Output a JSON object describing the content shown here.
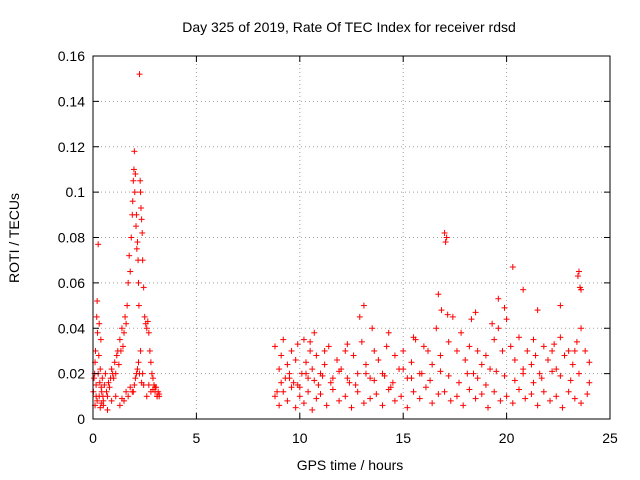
{
  "chart_data": {
    "type": "scatter",
    "title": "Day 325 of 2019, Rate Of TEC Index for receiver rdsd",
    "xlabel": "GPS time / hours",
    "ylabel": "ROTI / TECUs",
    "xlim": [
      0,
      25
    ],
    "ylim": [
      0,
      0.16
    ],
    "xticks": [
      0,
      5,
      10,
      15,
      20,
      25
    ],
    "yticks": [
      0,
      0.02,
      0.04,
      0.06,
      0.08,
      0.1,
      0.12,
      0.14,
      0.16
    ],
    "xtick_labels": [
      "0",
      "5",
      "10",
      "15",
      "20",
      "25"
    ],
    "ytick_labels": [
      "0",
      "0.02",
      "0.04",
      "0.06",
      "0.08",
      "0.1",
      "0.12",
      "0.14",
      "0.16"
    ],
    "grid": true,
    "marker": "plus",
    "series_color": "#ff0000",
    "series": [
      {
        "x": [
          0.02,
          0.05,
          0.08,
          0.1,
          0.12,
          0.15,
          0.18,
          0.2,
          0.22,
          0.25,
          0.28,
          0.3,
          0.33,
          0.35,
          0.38,
          0.4,
          0.42,
          0.45,
          0.48,
          0.5,
          0.55,
          0.6,
          0.65,
          0.7,
          0.75,
          0.8,
          0.85,
          0.9,
          0.95,
          1.0,
          1.05,
          1.1,
          1.15,
          1.2,
          1.25,
          1.3,
          1.35,
          1.4,
          1.45,
          1.5,
          1.55,
          1.6,
          1.65,
          1.7,
          1.75,
          1.8,
          1.85,
          1.9,
          1.92,
          1.95,
          1.98,
          2.0,
          2.02,
          2.05,
          2.08,
          2.1,
          2.12,
          2.15,
          2.18,
          2.2,
          2.22,
          2.25,
          2.28,
          2.3,
          2.32,
          2.35,
          2.38,
          2.4,
          2.45,
          2.5,
          2.55,
          2.6,
          2.65,
          2.7,
          2.75,
          2.8,
          2.85,
          2.9,
          2.95,
          3.0,
          3.05,
          3.1,
          3.15,
          3.2,
          0.1,
          0.2,
          0.3,
          0.35,
          0.4,
          0.25,
          0.15,
          1.3,
          1.5,
          1.7,
          1.9,
          2.0,
          2.1,
          2.2,
          2.3,
          2.35,
          2.25,
          2.15,
          2.05,
          1.95,
          2.45,
          2.6,
          2.8,
          3.0,
          3.1,
          0.5,
          0.7,
          0.9,
          1.1,
          1.4,
          1.6,
          1.8,
          2.4,
          2.7,
          2.9,
          3.2
        ],
        "y": [
          0.012,
          0.018,
          0.02,
          0.025,
          0.03,
          0.015,
          0.045,
          0.052,
          0.038,
          0.02,
          0.028,
          0.042,
          0.016,
          0.022,
          0.035,
          0.014,
          0.012,
          0.018,
          0.01,
          0.008,
          0.015,
          0.02,
          0.012,
          0.01,
          0.016,
          0.014,
          0.018,
          0.022,
          0.02,
          0.018,
          0.025,
          0.02,
          0.028,
          0.03,
          0.024,
          0.035,
          0.03,
          0.04,
          0.032,
          0.038,
          0.045,
          0.042,
          0.05,
          0.06,
          0.072,
          0.065,
          0.08,
          0.09,
          0.096,
          0.105,
          0.11,
          0.118,
          0.1,
          0.108,
          0.085,
          0.09,
          0.075,
          0.078,
          0.07,
          0.06,
          0.05,
          0.152,
          0.105,
          0.1,
          0.093,
          0.088,
          0.082,
          0.07,
          0.058,
          0.045,
          0.042,
          0.04,
          0.043,
          0.038,
          0.03,
          0.025,
          0.02,
          0.018,
          0.015,
          0.012,
          0.014,
          0.01,
          0.012,
          0.01,
          0.006,
          0.008,
          0.01,
          0.005,
          0.007,
          0.077,
          0.01,
          0.006,
          0.008,
          0.01,
          0.012,
          0.015,
          0.02,
          0.025,
          0.03,
          0.016,
          0.02,
          0.022,
          0.018,
          0.012,
          0.015,
          0.01,
          0.012,
          0.014,
          0.01,
          0.006,
          0.004,
          0.008,
          0.01,
          0.009,
          0.012,
          0.014,
          0.02,
          0.015,
          0.013,
          0.011
        ]
      },
      {
        "x": [
          8.8,
          8.9,
          9.0,
          9.1,
          9.2,
          9.3,
          9.4,
          9.5,
          9.6,
          9.7,
          9.8,
          9.9,
          10.0,
          10.1,
          10.2,
          10.3,
          10.4,
          10.5,
          10.6,
          10.7,
          10.8,
          10.9,
          11.0,
          11.2,
          11.4,
          11.6,
          11.8,
          12.0,
          12.2,
          12.4,
          12.6,
          12.8,
          13.0,
          13.2,
          13.4,
          13.6,
          13.8,
          14.0,
          14.2,
          14.4,
          14.6,
          14.8,
          15.0,
          15.2,
          15.4,
          15.6,
          15.8,
          16.0,
          16.2,
          16.4,
          16.6,
          16.8,
          17.0,
          17.05,
          17.1,
          17.2,
          17.4,
          17.6,
          17.8,
          18.0,
          18.2,
          18.4,
          18.6,
          18.8,
          19.0,
          19.2,
          19.4,
          19.6,
          19.8,
          20.0,
          20.2,
          20.4,
          20.6,
          20.8,
          21.0,
          21.2,
          21.4,
          21.6,
          21.8,
          22.0,
          22.2,
          22.4,
          22.6,
          22.8,
          23.0,
          23.2,
          23.4,
          23.5,
          23.6,
          23.8,
          24.0,
          13.1,
          12.9,
          16.7,
          19.6,
          19.9,
          20.3,
          20.8,
          21.5,
          23.45,
          23.55,
          23.6,
          16.85,
          17.15,
          18.3,
          18.5,
          22.6,
          13.5,
          14.3,
          10.5,
          11.2,
          12.3,
          15.5,
          19.3,
          21.3,
          22.3,
          23.3
        ],
        "y": [
          0.032,
          0.012,
          0.022,
          0.028,
          0.035,
          0.018,
          0.024,
          0.02,
          0.03,
          0.016,
          0.026,
          0.033,
          0.014,
          0.02,
          0.035,
          0.025,
          0.018,
          0.03,
          0.022,
          0.038,
          0.028,
          0.015,
          0.02,
          0.024,
          0.032,
          0.018,
          0.026,
          0.022,
          0.03,
          0.016,
          0.028,
          0.02,
          0.034,
          0.024,
          0.018,
          0.03,
          0.026,
          0.02,
          0.032,
          0.014,
          0.028,
          0.022,
          0.03,
          0.018,
          0.025,
          0.035,
          0.02,
          0.032,
          0.03,
          0.024,
          0.04,
          0.028,
          0.082,
          0.078,
          0.08,
          0.034,
          0.045,
          0.03,
          0.038,
          0.026,
          0.032,
          0.02,
          0.03,
          0.024,
          0.028,
          0.022,
          0.035,
          0.04,
          0.03,
          0.044,
          0.032,
          0.026,
          0.036,
          0.022,
          0.03,
          0.024,
          0.028,
          0.02,
          0.032,
          0.026,
          0.03,
          0.022,
          0.036,
          0.028,
          0.03,
          0.024,
          0.034,
          0.065,
          0.057,
          0.03,
          0.025,
          0.05,
          0.045,
          0.055,
          0.053,
          0.049,
          0.067,
          0.057,
          0.048,
          0.063,
          0.058,
          0.04,
          0.048,
          0.046,
          0.044,
          0.047,
          0.05,
          0.04,
          0.038,
          0.034,
          0.03,
          0.033,
          0.036,
          0.042,
          0.035,
          0.033,
          0.03
        ]
      },
      {
        "x": [
          8.8,
          9.0,
          9.2,
          9.4,
          9.6,
          9.8,
          10.0,
          10.2,
          10.4,
          10.6,
          10.8,
          11.0,
          11.3,
          11.6,
          11.9,
          12.2,
          12.5,
          12.8,
          13.1,
          13.4,
          13.7,
          14.0,
          14.3,
          14.6,
          14.9,
          15.2,
          15.5,
          15.8,
          16.1,
          16.4,
          16.7,
          17.0,
          17.3,
          17.6,
          17.9,
          18.2,
          18.5,
          18.8,
          19.1,
          19.4,
          19.7,
          20.0,
          20.3,
          20.6,
          20.9,
          21.2,
          21.5,
          21.8,
          22.1,
          22.4,
          22.7,
          23.0,
          23.3,
          23.6,
          23.9,
          9.1,
          9.5,
          9.9,
          10.3,
          10.7,
          11.1,
          11.5,
          11.9,
          12.3,
          12.7,
          13.2,
          13.6,
          14.1,
          14.5,
          15.0,
          15.4,
          15.9,
          16.3,
          16.8,
          17.2,
          17.7,
          18.1,
          18.6,
          19.0,
          19.5,
          19.9,
          20.4,
          20.8,
          21.3,
          21.7,
          22.2,
          22.6,
          23.1,
          23.5,
          24.0
        ],
        "y": [
          0.01,
          0.006,
          0.012,
          0.008,
          0.014,
          0.005,
          0.01,
          0.007,
          0.012,
          0.004,
          0.009,
          0.011,
          0.006,
          0.013,
          0.008,
          0.01,
          0.005,
          0.012,
          0.007,
          0.009,
          0.011,
          0.006,
          0.013,
          0.008,
          0.01,
          0.005,
          0.012,
          0.009,
          0.014,
          0.007,
          0.011,
          0.012,
          0.008,
          0.01,
          0.006,
          0.013,
          0.009,
          0.011,
          0.005,
          0.012,
          0.008,
          0.01,
          0.007,
          0.013,
          0.009,
          0.011,
          0.006,
          0.012,
          0.008,
          0.01,
          0.005,
          0.012,
          0.009,
          0.007,
          0.011,
          0.016,
          0.018,
          0.015,
          0.02,
          0.017,
          0.019,
          0.016,
          0.021,
          0.018,
          0.015,
          0.02,
          0.017,
          0.019,
          0.016,
          0.022,
          0.018,
          0.02,
          0.017,
          0.021,
          0.019,
          0.016,
          0.02,
          0.018,
          0.015,
          0.021,
          0.019,
          0.017,
          0.02,
          0.016,
          0.018,
          0.021,
          0.019,
          0.017,
          0.02,
          0.016
        ]
      }
    ]
  }
}
